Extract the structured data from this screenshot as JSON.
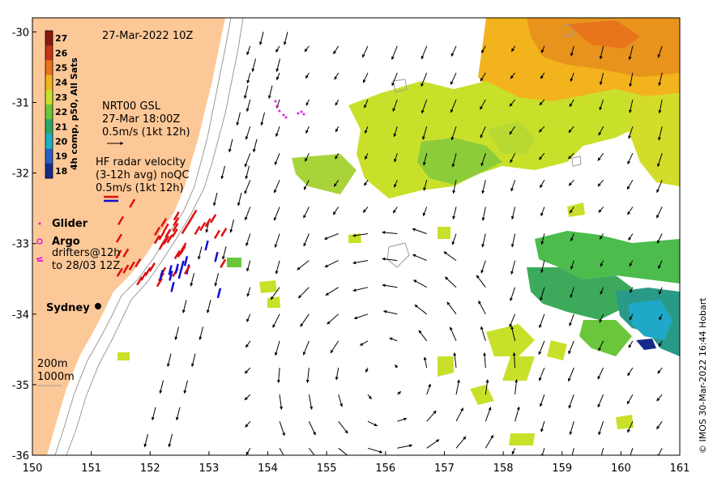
{
  "map": {
    "title_date": "27-Mar-2022 10Z",
    "credit": "© IMOS 30-Mar-2022 16:44 Hobart",
    "x_ticks": [
      "150",
      "151",
      "152",
      "153",
      "154",
      "155",
      "156",
      "157",
      "158",
      "159",
      "160",
      "161"
    ],
    "y_ticks": [
      "-30",
      "-31",
      "-32",
      "-33",
      "-34",
      "-35",
      "-36"
    ],
    "lon_range": [
      150,
      161
    ],
    "lat_range": [
      -36,
      -29.8
    ]
  },
  "colorbar": {
    "title": "4h comp, p50, All Sats",
    "labels": [
      "27",
      "26",
      "25",
      "24",
      "23",
      "22",
      "21",
      "20",
      "19",
      "18"
    ],
    "colors": [
      "#8b1a0e",
      "#c8331a",
      "#e8741c",
      "#f2b31c",
      "#c9e02a",
      "#6cc63c",
      "#2aa86a",
      "#1fb0c8",
      "#2a5fc8",
      "#162a8a"
    ]
  },
  "legend": {
    "gsl_title": "NRT00 GSL",
    "gsl_time": "27-Mar 18:00Z",
    "gsl_scale": "0.5m/s (1kt 12h)",
    "hf_title": "HF radar velocity",
    "hf_avg": "(3-12h avg) noQC",
    "hf_scale": "0.5m/s (1kt 12h)",
    "glider": "Glider",
    "argo": "Argo",
    "drifters_1": "drifters@12h",
    "drifters_2": "to 28/03 12Z",
    "city": "Sydney",
    "isobath_200": "200m",
    "isobath_1000": "1000m"
  },
  "colors": {
    "land": "#fdc898",
    "gsl_arrow": "#000000",
    "hf_arrow_a": "#e01010",
    "hf_arrow_b": "#1010d0",
    "drifter": "#e020e0",
    "isobath": "#9a9a9a"
  }
}
